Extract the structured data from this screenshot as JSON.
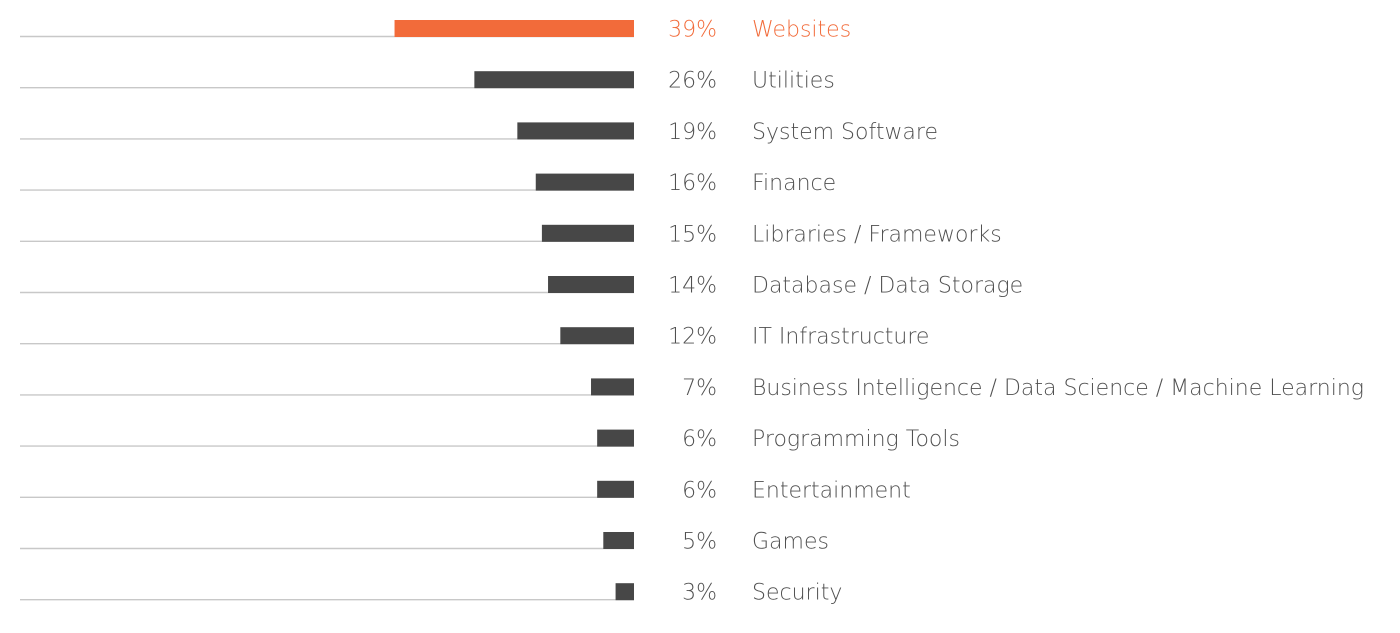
{
  "chart_data": {
    "type": "bar",
    "orientation": "horizontal",
    "bars_extend": "leftward",
    "grid": false,
    "legend": "none",
    "title": "",
    "xlabel": "",
    "ylabel": "",
    "xlim": [
      0,
      100
    ],
    "highlight_index": 0,
    "colors": {
      "highlight": "#F26B3A",
      "bar": "#474747",
      "baseline": "#c8c8c8",
      "text": "#505050"
    },
    "items": [
      {
        "label": "Websites",
        "value": 39,
        "value_label": "39%"
      },
      {
        "label": "Utilities",
        "value": 26,
        "value_label": "26%"
      },
      {
        "label": "System Software",
        "value": 19,
        "value_label": "19%"
      },
      {
        "label": "Finance",
        "value": 16,
        "value_label": "16%"
      },
      {
        "label": "Libraries / Frameworks",
        "value": 15,
        "value_label": "15%"
      },
      {
        "label": "Database / Data Storage",
        "value": 14,
        "value_label": "14%"
      },
      {
        "label": "IT Infrastructure",
        "value": 12,
        "value_label": "12%"
      },
      {
        "label": "Business Intelligence / Data Science / Machine Learning",
        "value": 7,
        "value_label": "7%"
      },
      {
        "label": "Programming Tools",
        "value": 6,
        "value_label": "6%"
      },
      {
        "label": "Entertainment",
        "value": 6,
        "value_label": "6%"
      },
      {
        "label": "Games",
        "value": 5,
        "value_label": "5%"
      },
      {
        "label": "Security",
        "value": 3,
        "value_label": "3%"
      }
    ]
  }
}
